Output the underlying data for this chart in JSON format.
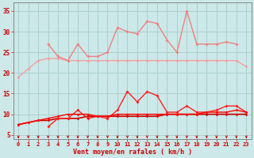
{
  "x": [
    0,
    1,
    2,
    3,
    4,
    5,
    6,
    7,
    8,
    9,
    10,
    11,
    12,
    13,
    14,
    15,
    16,
    17,
    18,
    19,
    20,
    21,
    22,
    23
  ],
  "series": [
    {
      "name": "flat_light1",
      "color": "#f4a0a0",
      "lw": 1.0,
      "ms": 2.0,
      "y": [
        19,
        21,
        23,
        23.5,
        23.5,
        23,
        23,
        23,
        23,
        23,
        23,
        23,
        23,
        23,
        23,
        23,
        23,
        23,
        23,
        23,
        23,
        23,
        23,
        21.5
      ]
    },
    {
      "name": "spiky_light",
      "color": "#f08080",
      "lw": 1.0,
      "ms": 2.0,
      "y": [
        null,
        null,
        null,
        27,
        24,
        23,
        27,
        24,
        24,
        25,
        31,
        30,
        29.5,
        32.5,
        32,
        28,
        25,
        35,
        27,
        27,
        27,
        27.5,
        27,
        null
      ]
    },
    {
      "name": "flat_dark_low",
      "color": "#cc0000",
      "lw": 1.2,
      "ms": 1.8,
      "y": [
        7.5,
        8,
        8.5,
        8.5,
        9,
        9,
        9,
        9.5,
        9.5,
        9.5,
        9.5,
        9.5,
        9.5,
        9.5,
        9.5,
        10,
        10,
        10,
        10,
        10,
        10,
        10,
        10,
        10
      ]
    },
    {
      "name": "spiky_red",
      "color": "#ff2020",
      "lw": 1.0,
      "ms": 2.0,
      "y": [
        null,
        null,
        null,
        7,
        9,
        9,
        11,
        9,
        9.5,
        9,
        11,
        15.5,
        13,
        15.5,
        14.5,
        10.5,
        10.5,
        12,
        10.5,
        10.5,
        11,
        12,
        12,
        10.5
      ]
    },
    {
      "name": "rising_red",
      "color": "#ff0000",
      "lw": 1.0,
      "ms": 1.8,
      "y": [
        7.5,
        8,
        8.5,
        9,
        9.5,
        10,
        10,
        10,
        9.5,
        9.5,
        10,
        10,
        10,
        10,
        10,
        10,
        10,
        10,
        10,
        10.5,
        10.5,
        10.5,
        11,
        10.5
      ]
    }
  ],
  "xlabel": "Vent moyen/en rafales ( km/h )",
  "xlim": [
    -0.5,
    23.5
  ],
  "ylim": [
    4,
    37
  ],
  "yticks": [
    5,
    10,
    15,
    20,
    25,
    30,
    35
  ],
  "xticks": [
    0,
    1,
    2,
    3,
    4,
    5,
    6,
    7,
    8,
    9,
    10,
    11,
    12,
    13,
    14,
    15,
    16,
    17,
    18,
    19,
    20,
    21,
    22,
    23
  ],
  "background_color": "#cce8e8",
  "grid_color": "#aacfcf",
  "tick_color": "#cc0000",
  "label_color": "#cc0000",
  "arrow_color": "#cc0000"
}
